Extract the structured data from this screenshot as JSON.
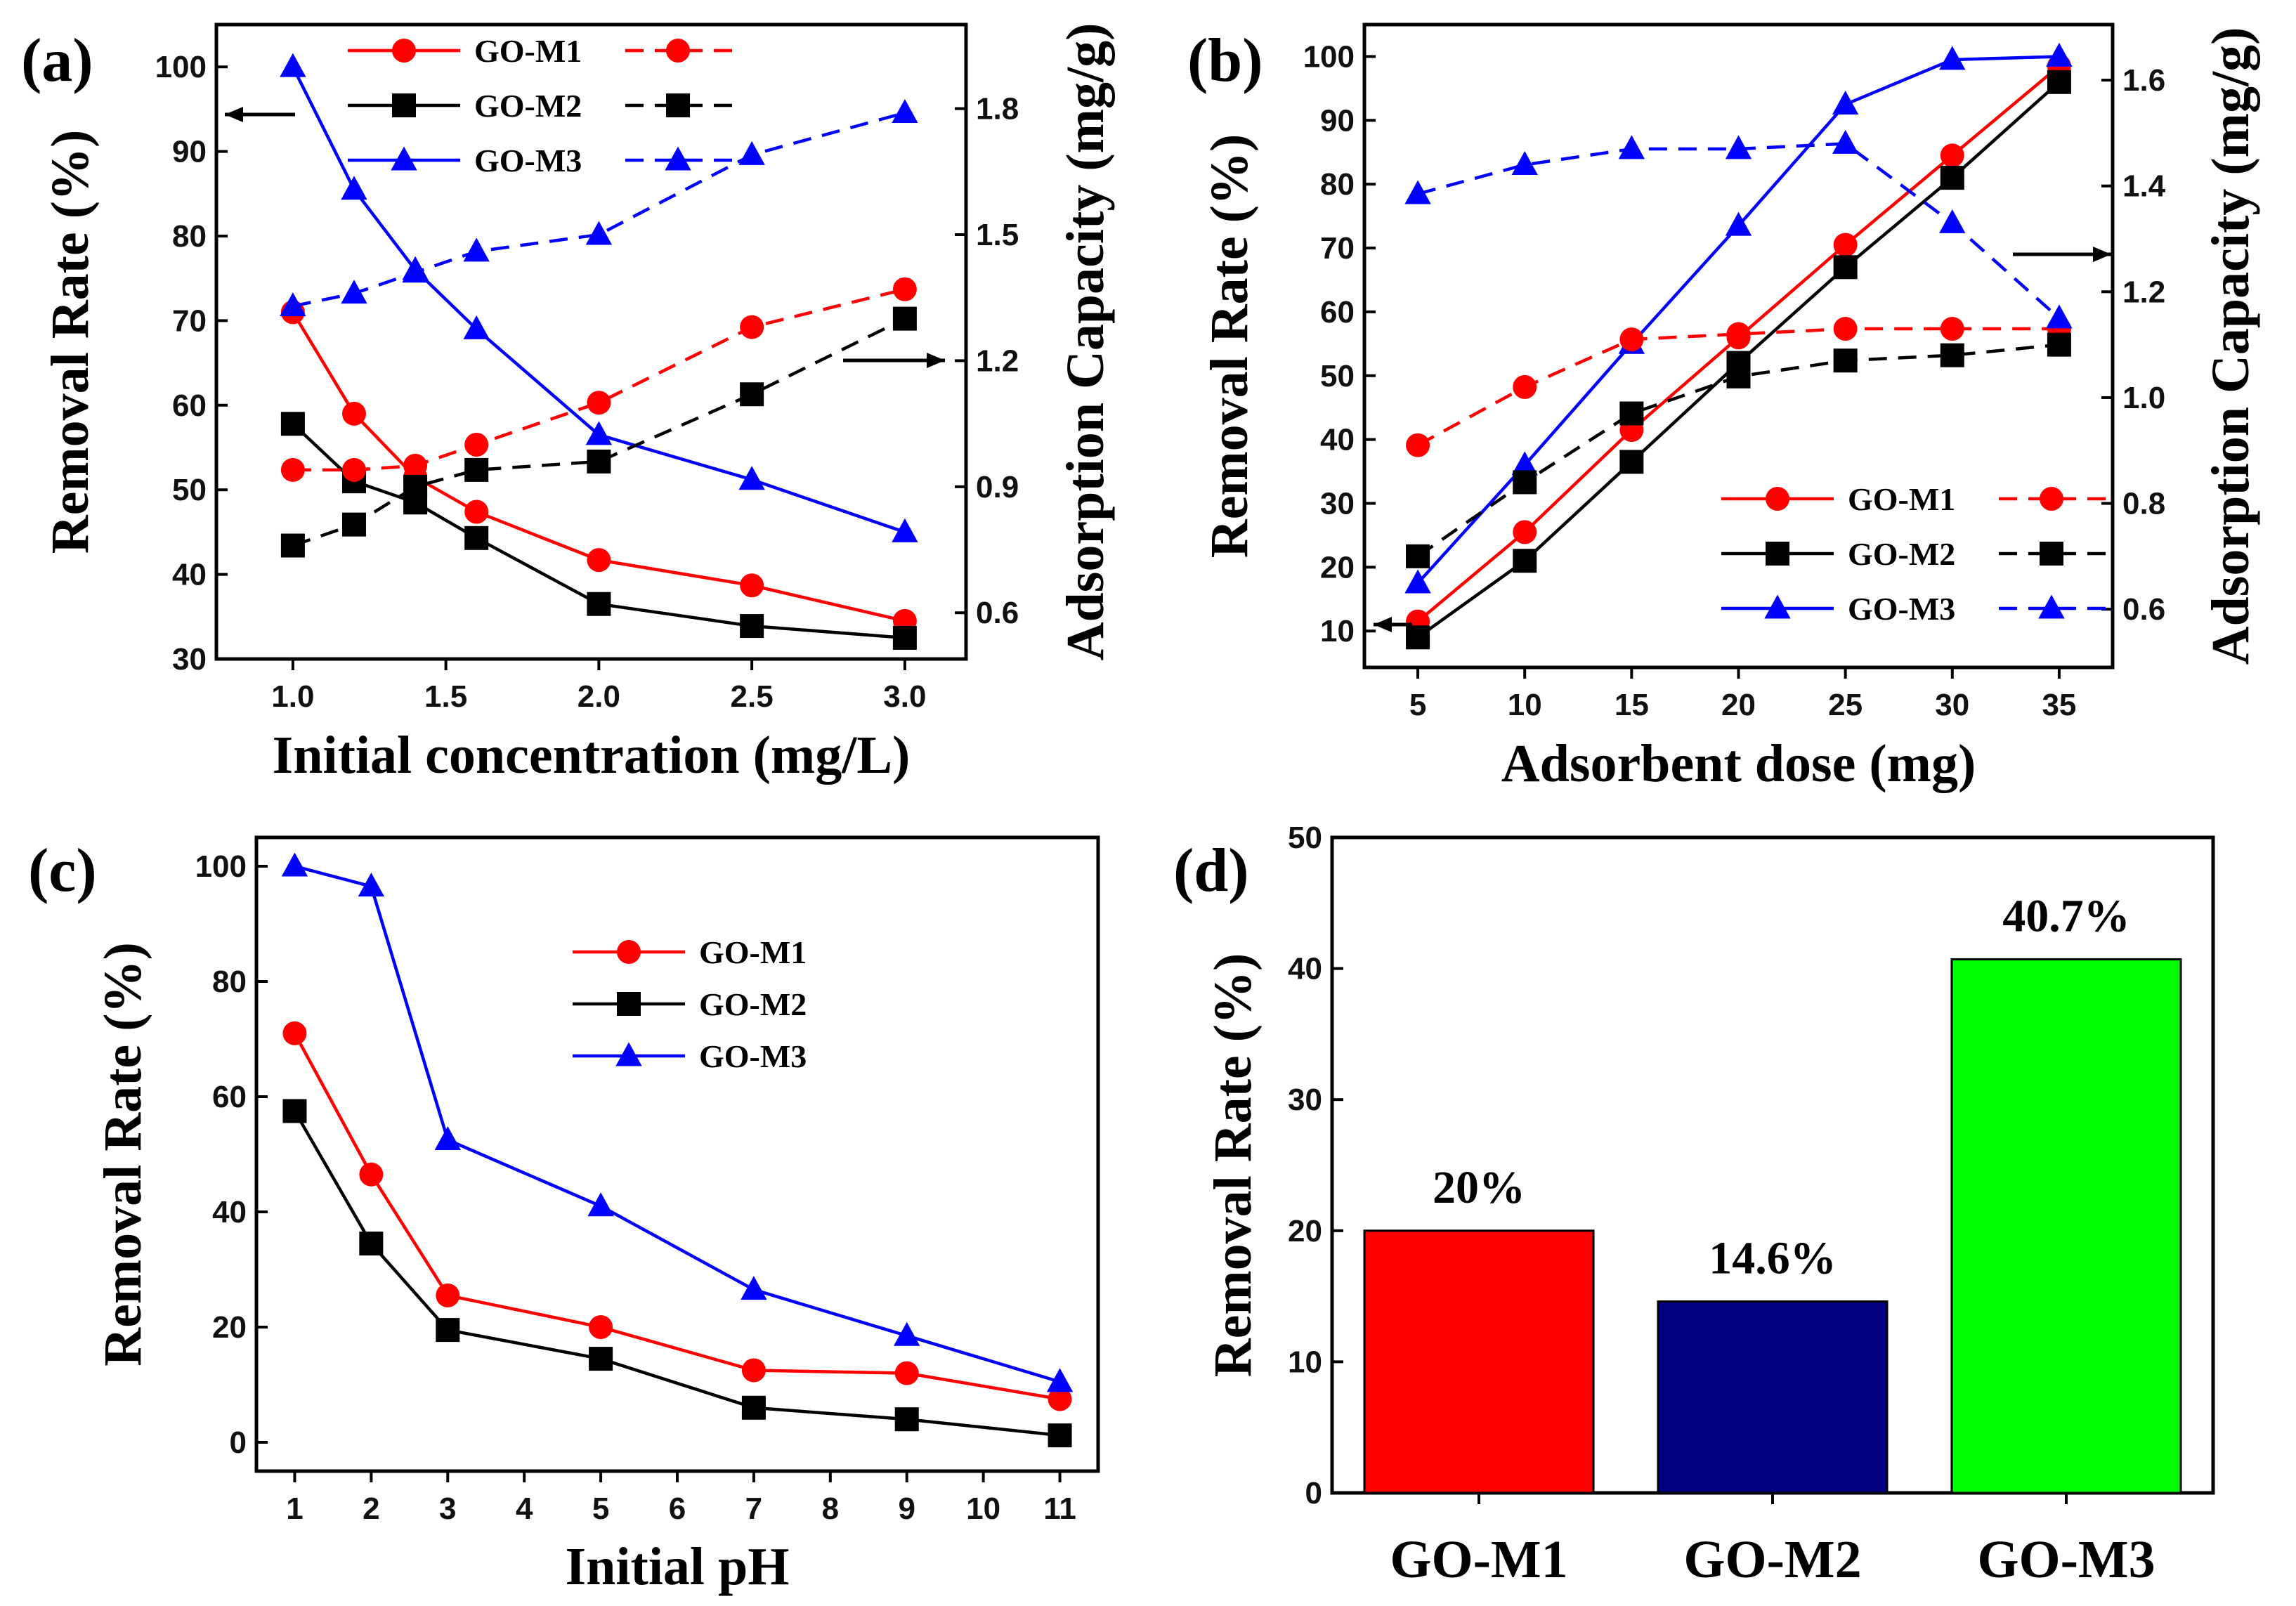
{
  "chart_data": [
    {
      "panel_label": "(a)",
      "type": "line",
      "xlabel": "Initial concentration (mg/L)",
      "ylabel": "Removal Rate (%)",
      "y2label": "Adsorption Capacity (mg/g)",
      "xlim": [
        0.75,
        3.2
      ],
      "ylim": [
        30,
        105
      ],
      "y2lim": [
        0.49,
        2.0
      ],
      "xticks": [
        1.0,
        1.5,
        2.0,
        2.5,
        3.0
      ],
      "xtick_labels": [
        "1.0",
        "1.5",
        "2.0",
        "2.5",
        "3.0"
      ],
      "yticks": [
        30,
        40,
        50,
        60,
        70,
        80,
        90,
        100
      ],
      "ytick_labels": [
        "30",
        "40",
        "50",
        "60",
        "70",
        "80",
        "90",
        "100"
      ],
      "y2ticks": [
        0.6,
        0.9,
        1.2,
        1.5,
        1.8
      ],
      "y2tick_labels": [
        "0.6",
        "0.9",
        "1.2",
        "1.5",
        "1.8"
      ],
      "x": [
        1.0,
        1.2,
        1.4,
        1.6,
        2.0,
        2.5,
        3.0
      ],
      "legend": "top-left",
      "series": [
        {
          "name": "GO-M1",
          "color": "#ff0000",
          "marker": "circle",
          "axis": "left",
          "style": "solid",
          "values": [
            71,
            59,
            51.5,
            47.4,
            41.7,
            38.7,
            34.5
          ]
        },
        {
          "name": "GO-M2",
          "color": "#000000",
          "marker": "square",
          "axis": "left",
          "style": "solid",
          "values": [
            57.8,
            51,
            48.5,
            44.3,
            36.5,
            33.9,
            32.5
          ]
        },
        {
          "name": "GO-M3",
          "color": "#0000ff",
          "marker": "triangle",
          "axis": "left",
          "style": "solid",
          "values": [
            100,
            85.5,
            76,
            69,
            56.5,
            51.2,
            45
          ]
        },
        {
          "color": "#ff0000",
          "marker": "circle",
          "axis": "right",
          "style": "dashed",
          "values": [
            0.94,
            0.94,
            0.95,
            1.0,
            1.1,
            1.28,
            1.37
          ]
        },
        {
          "color": "#000000",
          "marker": "square",
          "axis": "right",
          "style": "dashed",
          "values": [
            0.76,
            0.81,
            0.9,
            0.94,
            0.96,
            1.12,
            1.3
          ]
        },
        {
          "color": "#0000ff",
          "marker": "triangle",
          "axis": "right",
          "style": "dashed",
          "values": [
            1.33,
            1.36,
            1.41,
            1.46,
            1.5,
            1.69,
            1.79
          ]
        }
      ]
    },
    {
      "panel_label": "(b)",
      "type": "line",
      "xlabel": "Adsorbent dose (mg)",
      "ylabel": "Removal Rate (%)",
      "y2label": "Adsorption Capacity (mg/g)",
      "xlim": [
        2.5,
        37.5
      ],
      "ylim": [
        4.3,
        105
      ],
      "y2lim": [
        0.49,
        1.705
      ],
      "xticks": [
        5,
        10,
        15,
        20,
        25,
        30,
        35
      ],
      "xtick_labels": [
        "5",
        "10",
        "15",
        "20",
        "25",
        "30",
        "35"
      ],
      "yticks": [
        10,
        20,
        30,
        40,
        50,
        60,
        70,
        80,
        90,
        100
      ],
      "ytick_labels": [
        "10",
        "20",
        "30",
        "40",
        "50",
        "60",
        "70",
        "80",
        "90",
        "100"
      ],
      "y2ticks": [
        0.6,
        0.8,
        1.0,
        1.2,
        1.4,
        1.6
      ],
      "y2tick_labels": [
        "0.6",
        "0.8",
        "1.0",
        "1.2",
        "1.4",
        "1.6"
      ],
      "x": [
        5,
        10,
        15,
        20,
        25,
        30,
        35
      ],
      "legend": "bottom-right",
      "series": [
        {
          "name": "GO-M1",
          "color": "#ff0000",
          "marker": "circle",
          "axis": "left",
          "style": "solid",
          "values": [
            11.5,
            25.5,
            41.5,
            56,
            70.5,
            84.5,
            98.5
          ]
        },
        {
          "name": "GO-M2",
          "color": "#000000",
          "marker": "square",
          "axis": "left",
          "style": "solid",
          "values": [
            9,
            21,
            36.5,
            52,
            67,
            81,
            96
          ]
        },
        {
          "name": "GO-M3",
          "color": "#0000ff",
          "marker": "triangle",
          "axis": "left",
          "style": "solid",
          "values": [
            17.5,
            36,
            55,
            73.5,
            92.5,
            99.5,
            100
          ]
        },
        {
          "color": "#ff0000",
          "marker": "circle",
          "axis": "right",
          "style": "dashed",
          "values": [
            0.91,
            1.02,
            1.11,
            1.12,
            1.13,
            1.13,
            1.13
          ]
        },
        {
          "color": "#000000",
          "marker": "square",
          "axis": "right",
          "style": "dashed",
          "values": [
            0.7,
            0.84,
            0.97,
            1.04,
            1.07,
            1.08,
            1.1
          ]
        },
        {
          "color": "#0000ff",
          "marker": "triangle",
          "axis": "right",
          "style": "dashed",
          "values": [
            1.385,
            1.44,
            1.47,
            1.47,
            1.48,
            1.33,
            1.15
          ]
        }
      ]
    },
    {
      "panel_label": "(c)",
      "type": "line",
      "xlabel": "Initial pH",
      "ylabel": "Removal Rate (%)",
      "xlim": [
        0.5,
        11.5
      ],
      "ylim": [
        -5,
        105
      ],
      "xticks": [
        1,
        2,
        3,
        4,
        5,
        6,
        7,
        8,
        9,
        10,
        11
      ],
      "xtick_labels": [
        "1",
        "2",
        "3",
        "4",
        "5",
        "6",
        "7",
        "8",
        "9",
        "10",
        "11"
      ],
      "yticks": [
        0,
        20,
        40,
        60,
        80,
        100
      ],
      "ytick_labels": [
        "0",
        "20",
        "40",
        "60",
        "80",
        "100"
      ],
      "x": [
        1,
        2,
        3,
        5,
        7,
        9,
        11
      ],
      "legend": "top-center",
      "series": [
        {
          "name": "GO-M1",
          "color": "#ff0000",
          "marker": "circle",
          "axis": "left",
          "style": "solid",
          "values": [
            71,
            46.5,
            25.5,
            20,
            12.5,
            12,
            7.5
          ]
        },
        {
          "name": "GO-M2",
          "color": "#000000",
          "marker": "square",
          "axis": "left",
          "style": "solid",
          "values": [
            57.5,
            34.5,
            19.5,
            14.5,
            6,
            4,
            1.2
          ]
        },
        {
          "name": "GO-M3",
          "color": "#0000ff",
          "marker": "triangle",
          "axis": "left",
          "style": "solid",
          "values": [
            100,
            96.5,
            52.5,
            41,
            26.5,
            18.5,
            10.5
          ]
        }
      ]
    },
    {
      "panel_label": "(d)",
      "type": "bar",
      "ylabel": "Removal Rate (%)",
      "ylim": [
        0,
        50
      ],
      "yticks": [
        0,
        10,
        20,
        30,
        40,
        50
      ],
      "ytick_labels": [
        "0",
        "10",
        "20",
        "30",
        "40",
        "50"
      ],
      "categories": [
        "GO-M1",
        "GO-M2",
        "GO-M3"
      ],
      "values": [
        20,
        14.6,
        40.7
      ],
      "data_labels": [
        "20%",
        "14.6%",
        "40.7%"
      ],
      "colors": [
        "#ff0000",
        "#000080",
        "#00ff00"
      ]
    }
  ]
}
